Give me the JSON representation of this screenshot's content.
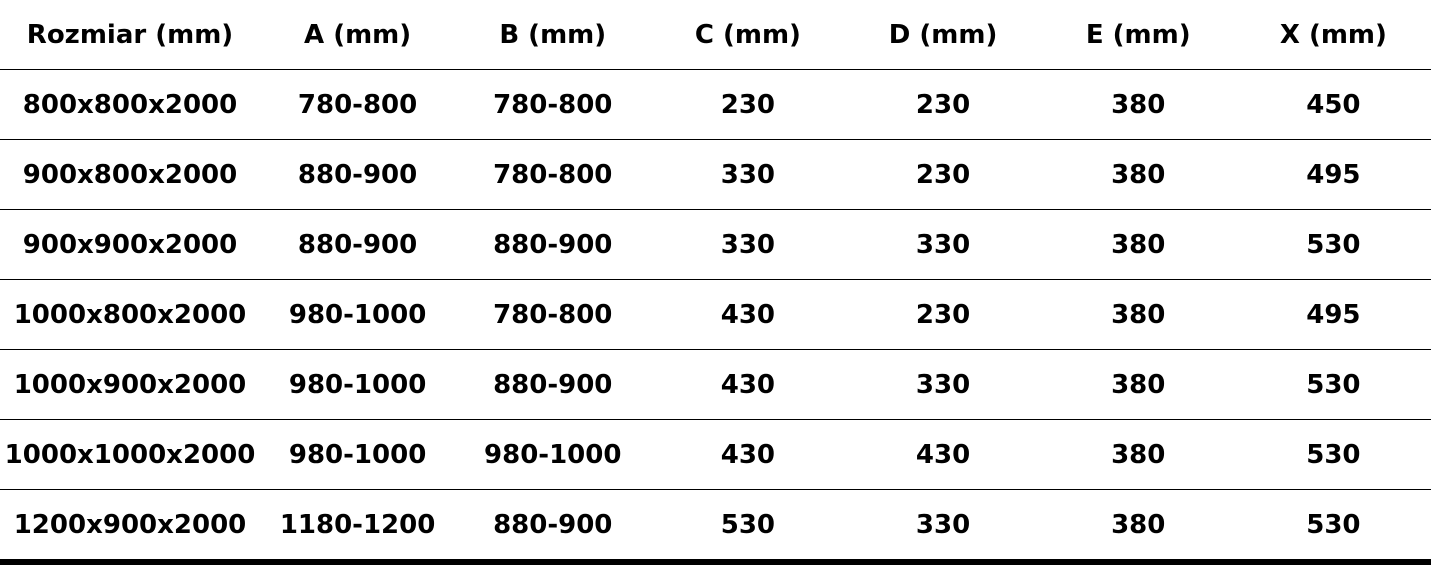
{
  "table": {
    "header": [
      "Rozmiar (mm)",
      "A (mm)",
      "B (mm)",
      "C (mm)",
      "D (mm)",
      "E (mm)",
      "X (mm)"
    ],
    "rows": [
      [
        "800x800x2000",
        "780-800",
        "780-800",
        "230",
        "230",
        "380",
        "450"
      ],
      [
        "900x800x2000",
        "880-900",
        "780-800",
        "330",
        "230",
        "380",
        "495"
      ],
      [
        "900x900x2000",
        "880-900",
        "880-900",
        "330",
        "330",
        "380",
        "530"
      ],
      [
        "1000x800x2000",
        "980-1000",
        "780-800",
        "430",
        "230",
        "380",
        "495"
      ],
      [
        "1000x900x2000",
        "980-1000",
        "880-900",
        "430",
        "330",
        "380",
        "530"
      ],
      [
        "1000x1000x2000",
        "980-1000",
        "980-1000",
        "430",
        "430",
        "380",
        "530"
      ],
      [
        "1200x900x2000",
        "1180-1200",
        "880-900",
        "530",
        "330",
        "380",
        "530"
      ]
    ]
  }
}
